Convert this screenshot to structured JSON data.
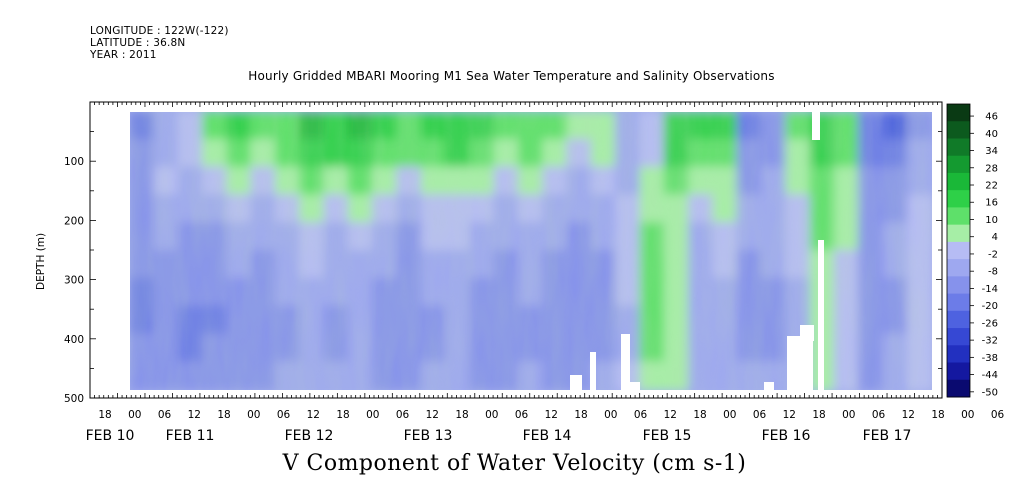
{
  "header": {
    "longitude": "LONGITUDE : 122W(-122)",
    "latitude": "LATITUDE : 36.8N",
    "year": "YEAR : 2011"
  },
  "chart_data": {
    "type": "heatmap",
    "title": "Hourly Gridded MBARI Mooring M1 Sea Water Temperature and Salinity Observations",
    "xlabel": "V Component of Water Velocity (cm s-1)",
    "ylabel": "DEPTH (m)",
    "ylim": [
      500,
      0
    ],
    "y_ticks": [
      100,
      200,
      300,
      400,
      500
    ],
    "x_hour_labels": [
      "18",
      "00",
      "06",
      "12",
      "18",
      "00",
      "06",
      "12",
      "18",
      "00",
      "06",
      "12",
      "18",
      "00",
      "06",
      "12",
      "18",
      "00",
      "06",
      "12",
      "18",
      "00",
      "06",
      "12",
      "18",
      "00",
      "06",
      "12",
      "18",
      "00",
      "06",
      "12"
    ],
    "x_date_labels": [
      "FEB 10",
      "FEB 11",
      "FEB 12",
      "FEB 13",
      "FEB 14",
      "FEB 15",
      "FEB 16",
      "FEB 17"
    ],
    "colorbar": {
      "labels": [
        "46",
        "40",
        "34",
        "28",
        "22",
        "16",
        "10",
        "4",
        "-2",
        "-8",
        "-14",
        "-20",
        "-26",
        "-32",
        "-38",
        "-44",
        "-50"
      ],
      "colors": [
        "#0a3a14",
        "#0c5a1e",
        "#107a28",
        "#149a30",
        "#1ab838",
        "#2ed048",
        "#5ee06a",
        "#a6eea6",
        "#b6bcf4",
        "#9ea8f0",
        "#8692ec",
        "#6c7ce8",
        "#4e62e0",
        "#3648d4",
        "#2230c0",
        "#1418a0",
        "#0a0a70"
      ]
    },
    "series": [
      {
        "name": "",
        "values": [
          [
            -18,
            -10,
            -4,
            8,
            14,
            10,
            12,
            20,
            18,
            22,
            16,
            12,
            16,
            18,
            14,
            8,
            12,
            10,
            4,
            6,
            -10,
            -4,
            18,
            16,
            14,
            -18,
            -16,
            10,
            16,
            12,
            -20,
            -24,
            -12
          ],
          [
            -14,
            -6,
            -2,
            4,
            10,
            6,
            10,
            16,
            14,
            18,
            12,
            8,
            12,
            14,
            10,
            4,
            8,
            6,
            0,
            2,
            -8,
            -2,
            14,
            12,
            12,
            -16,
            -14,
            6,
            14,
            10,
            -18,
            -20,
            -8
          ],
          [
            -12,
            -4,
            -8,
            -2,
            4,
            -4,
            4,
            8,
            6,
            10,
            4,
            -2,
            6,
            6,
            2,
            -2,
            2,
            -4,
            -6,
            -4,
            -6,
            4,
            8,
            4,
            6,
            -12,
            -10,
            2,
            12,
            6,
            -14,
            -16,
            -6
          ],
          [
            -12,
            -6,
            -10,
            -8,
            -2,
            -8,
            -2,
            2,
            -2,
            4,
            -4,
            -8,
            0,
            0,
            -4,
            -6,
            -4,
            -8,
            -10,
            -8,
            -4,
            6,
            4,
            -2,
            2,
            -10,
            -8,
            0,
            10,
            4,
            -12,
            -12,
            -4
          ],
          [
            -14,
            -10,
            -12,
            -12,
            -6,
            -10,
            -6,
            -2,
            -6,
            -2,
            -8,
            -12,
            -4,
            -4,
            -8,
            -10,
            -6,
            -10,
            -12,
            -10,
            -2,
            8,
            2,
            -6,
            -2,
            -10,
            -8,
            -2,
            8,
            2,
            -12,
            -10,
            -2
          ],
          [
            -16,
            -12,
            -14,
            -14,
            -10,
            -12,
            -8,
            -4,
            -8,
            -6,
            -10,
            -14,
            -8,
            -6,
            -10,
            -12,
            -8,
            -12,
            -14,
            -12,
            -2,
            10,
            4,
            -8,
            -4,
            -12,
            -10,
            -4,
            6,
            0,
            -14,
            -10,
            -2
          ],
          [
            -18,
            -14,
            -16,
            -16,
            -12,
            -14,
            -10,
            -6,
            -10,
            -8,
            -12,
            -16,
            -10,
            -8,
            -12,
            -14,
            -10,
            -14,
            -16,
            -14,
            -4,
            12,
            6,
            -10,
            -6,
            -14,
            -12,
            -6,
            4,
            -2,
            -16,
            -12,
            -4
          ],
          [
            -18,
            -16,
            -18,
            -18,
            -14,
            -16,
            -12,
            -8,
            -12,
            -10,
            -14,
            -16,
            -12,
            -10,
            -14,
            -16,
            -12,
            -14,
            -16,
            -14,
            -6,
            10,
            4,
            -10,
            -8,
            -14,
            -14,
            -8,
            2,
            -4,
            -16,
            -12,
            -4
          ],
          [
            -16,
            -16,
            -18,
            -16,
            -14,
            -16,
            -12,
            -8,
            -12,
            -10,
            -14,
            -16,
            -12,
            -10,
            -14,
            -14,
            -12,
            -14,
            -14,
            -12,
            -6,
            8,
            2,
            -10,
            -8,
            -12,
            -12,
            -8,
            2,
            -4,
            -14,
            -10,
            -4
          ],
          [
            -14,
            -14,
            -16,
            -14,
            -12,
            -14,
            -10,
            -6,
            -10,
            -8,
            -12,
            -14,
            -10,
            -8,
            -12,
            -12,
            -10,
            -12,
            -12,
            -10,
            -4,
            6,
            2,
            -8,
            -6,
            -10,
            -10,
            -6,
            2,
            -2,
            -12,
            -8,
            -2
          ]
        ]
      }
    ]
  }
}
